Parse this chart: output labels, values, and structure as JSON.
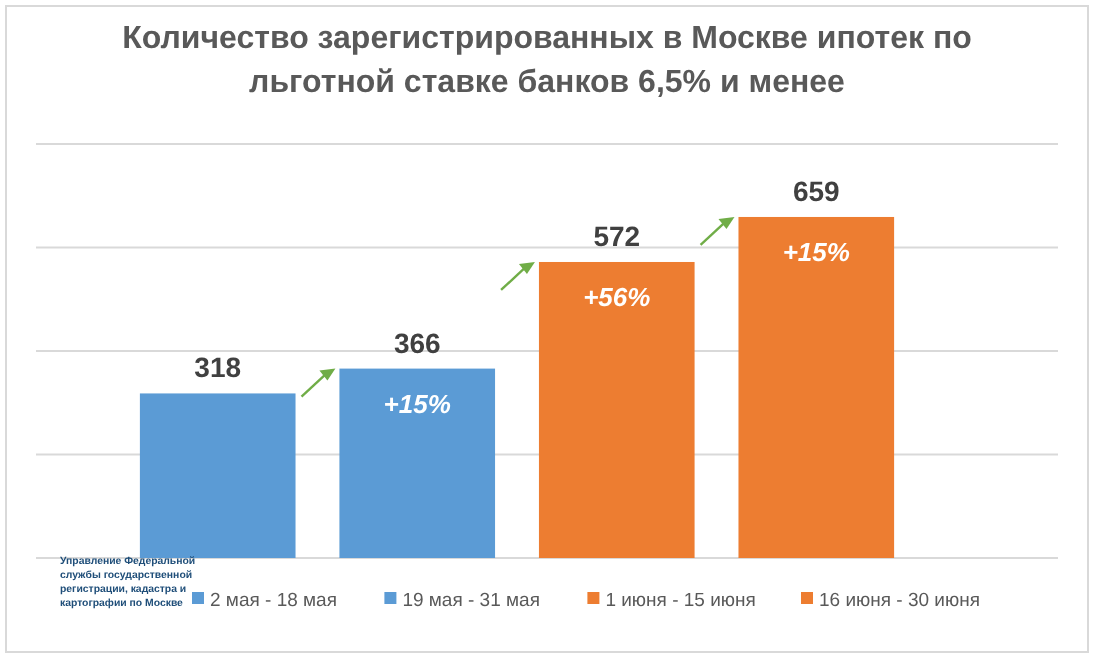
{
  "chart_data": {
    "type": "bar",
    "title": "Количество зарегистрированных в Москве ипотек по льготной ставке банков 6,5% и менее",
    "categories": [
      null,
      null,
      null,
      null
    ],
    "series": [
      {
        "name": "2 мая - 18 мая",
        "color": "#5b9bd5",
        "values": [
          318,
          null,
          null,
          null
        ]
      },
      {
        "name": "19 мая - 31 мая",
        "color": "#5b9bd5",
        "values": [
          null,
          366,
          null,
          null
        ]
      },
      {
        "name": "1 июня - 15 июня",
        "color": "#ed7d31",
        "values": [
          null,
          null,
          572,
          null
        ]
      },
      {
        "name": "16 июня - 30 июня",
        "color": "#ed7d31",
        "values": [
          null,
          null,
          null,
          659
        ]
      }
    ],
    "stacked": true,
    "ylim": [
      0,
      800
    ],
    "yticks": [
      {
        "value": 0,
        "label": null
      },
      {
        "value": 200,
        "label": null
      },
      {
        "value": 400,
        "label": null
      },
      {
        "value": 600,
        "label": null
      },
      {
        "value": 800,
        "label": null
      }
    ],
    "grid": "y",
    "legend": "bottom",
    "data_labels": true,
    "annotations": [
      "+15%",
      "+56%",
      "+15%",
      "Управление Федеральной службы государственной регистрации, кадастра и картографии по Москве"
    ]
  }
}
